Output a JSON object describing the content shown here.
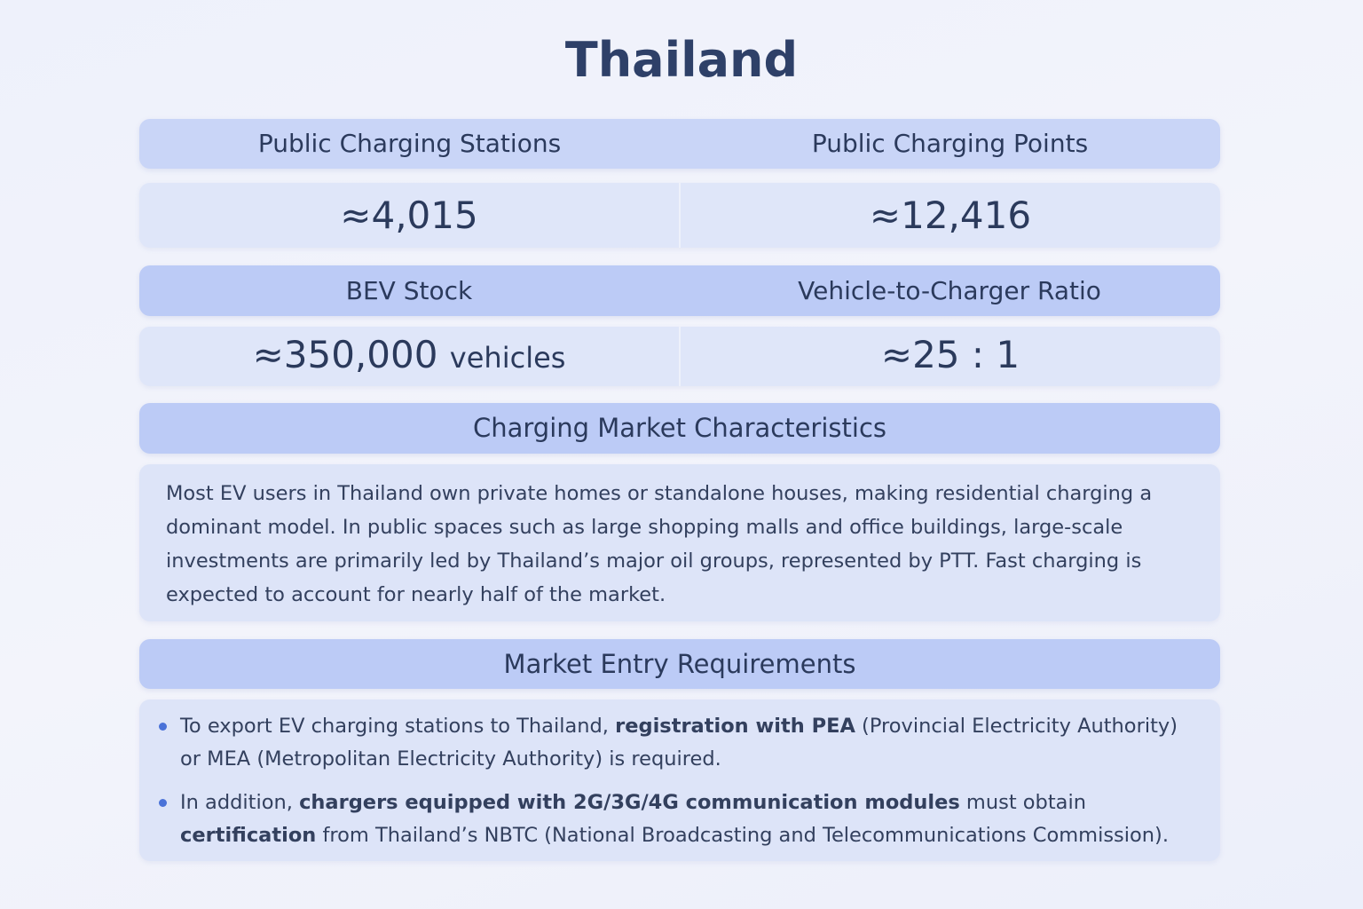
{
  "title": "Thailand",
  "stats": [
    {
      "headers": [
        "Public Charging Stations",
        "Public Charging Points"
      ],
      "values": [
        {
          "value": "≈4,015"
        },
        {
          "value": "≈12,416"
        }
      ]
    },
    {
      "headers": [
        "BEV Stock",
        "Vehicle-to-Charger Ratio"
      ],
      "values": [
        {
          "value": "≈350,000",
          "unit": "vehicles"
        },
        {
          "value": "≈25 : 1"
        }
      ]
    }
  ],
  "characteristics": {
    "heading": "Charging Market Characteristics",
    "text": "Most EV users in Thailand own private homes or standalone houses, making residential charging a dominant model. In public spaces such as large shopping malls and office buildings, large-scale investments are primarily led by Thailand’s major oil groups, represented by PTT. Fast charging is expected to account for nearly half of the market."
  },
  "requirements": {
    "heading": "Market Entry Requirements",
    "bullets": [
      [
        {
          "text": "To export EV charging stations to Thailand, ",
          "bold": false
        },
        {
          "text": "registration with PEA",
          "bold": true
        },
        {
          "text": " (Provincial Electricity Authority) or MEA (Metropolitan Electricity Authority) is required.",
          "bold": false
        }
      ],
      [
        {
          "text": "In addition, ",
          "bold": false
        },
        {
          "text": "chargers equipped with 2G/3G/4G communication modules",
          "bold": true
        },
        {
          "text": " must obtain ",
          "bold": false
        },
        {
          "text": "certification",
          "bold": true
        },
        {
          "text": " from Thailand’s NBTC (National Broadcasting and Telecommunications Commission).",
          "bold": false
        }
      ]
    ]
  }
}
